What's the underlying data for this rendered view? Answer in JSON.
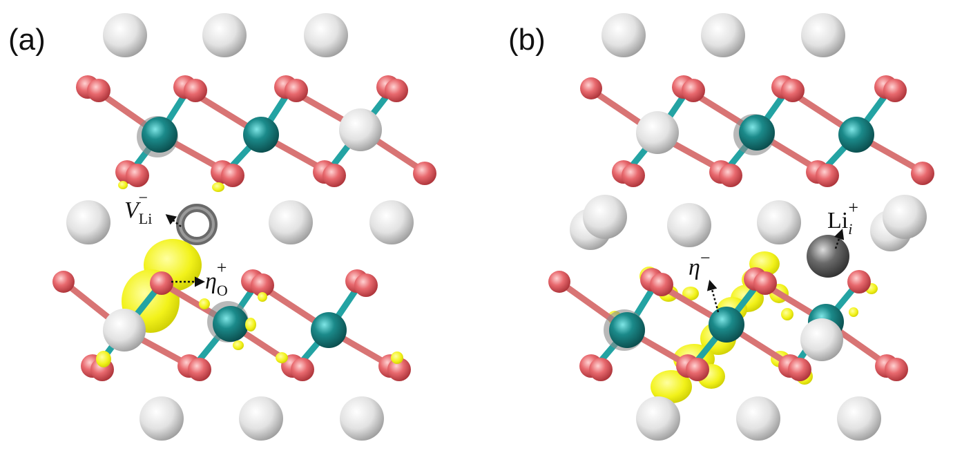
{
  "panels": [
    {
      "label": "(a)",
      "annotations": {
        "vacancy": {
          "main": "V",
          "sub": "Li",
          "sup": "−"
        },
        "hole": {
          "main": "η",
          "sub": "O",
          "sup": "+"
        }
      }
    },
    {
      "label": "(b)",
      "annotations": {
        "interstitial": {
          "main": "Li",
          "sub": "i",
          "sup": "+"
        },
        "electron": {
          "main": "η",
          "sup": "−"
        }
      }
    }
  ],
  "colors": {
    "lithium": "#e8e8e8",
    "oxygen": "#e8696e",
    "metal": "#1b8a8a",
    "charge_density": "#f2f21a",
    "defect": "#5a5a5a"
  }
}
